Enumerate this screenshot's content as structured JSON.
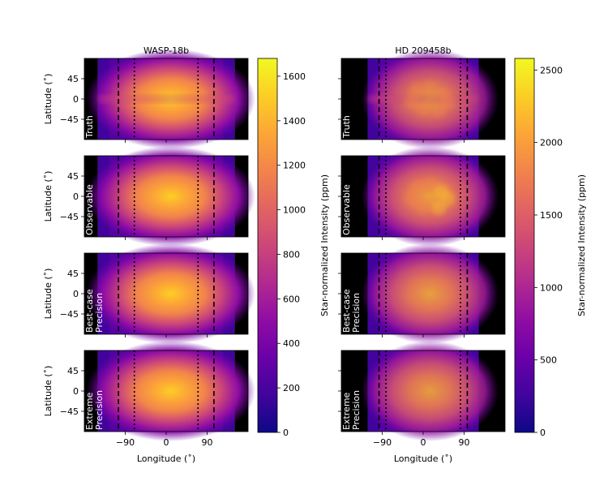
{
  "chart_data": {
    "type": "heatmap",
    "description_units": {
      "longitude": "degrees",
      "latitude": "degrees"
    },
    "x_label": "Longitude ($^\\circ$)",
    "y_label": "Latitude ($^\\circ$)",
    "x_ticks": [
      -90,
      0,
      90
    ],
    "x_tick_labels": [
      "−90",
      "0",
      "90"
    ],
    "y_ticks": [
      45,
      0,
      -45
    ],
    "y_tick_labels": [
      "45",
      "0",
      "−45"
    ],
    "xlim": [
      -180,
      180
    ],
    "ylim": [
      -90,
      90
    ],
    "row_labels": [
      [
        "Truth"
      ],
      [
        "Observable"
      ],
      [
        "Best-case",
        "Precision"
      ],
      [
        "Extreme",
        "Precision"
      ]
    ],
    "panels": [
      {
        "title": "WASP-18b",
        "dark_side_longitudes": [
          -150,
          150
        ],
        "dashed_longitudes": [
          -105,
          105
        ],
        "dotted_longitudes": [
          -70,
          70
        ],
        "hotspot_longitude": 10,
        "colorbar": {
          "label": "Star-normalized Intensity (ppm)",
          "range": [
            0,
            1680
          ],
          "ticks": [
            0,
            200,
            400,
            600,
            800,
            1000,
            1200,
            1400,
            1600
          ],
          "tick_labels": [
            "0",
            "200",
            "400",
            "600",
            "800",
            "1000",
            "1200",
            "1400",
            "1600"
          ]
        },
        "row_peak_intensity": [
          1650,
          1550,
          1540,
          1560
        ]
      },
      {
        "title": "HD 209458b",
        "dark_side_longitudes": [
          -122,
          122
        ],
        "dashed_longitudes": [
          -97,
          97
        ],
        "dotted_longitudes": [
          -82,
          82
        ],
        "hotspot_longitude": 15,
        "colorbar": {
          "label": "Star-normalized Intensity (ppm)",
          "range": [
            0,
            2580
          ],
          "ticks": [
            0,
            500,
            1000,
            1500,
            2000,
            2500
          ],
          "tick_labels": [
            "0",
            "500",
            "1000",
            "1500",
            "2000",
            "2500"
          ]
        },
        "row_peak_intensity": [
          1650,
          1900,
          1800,
          1700
        ]
      }
    ]
  }
}
